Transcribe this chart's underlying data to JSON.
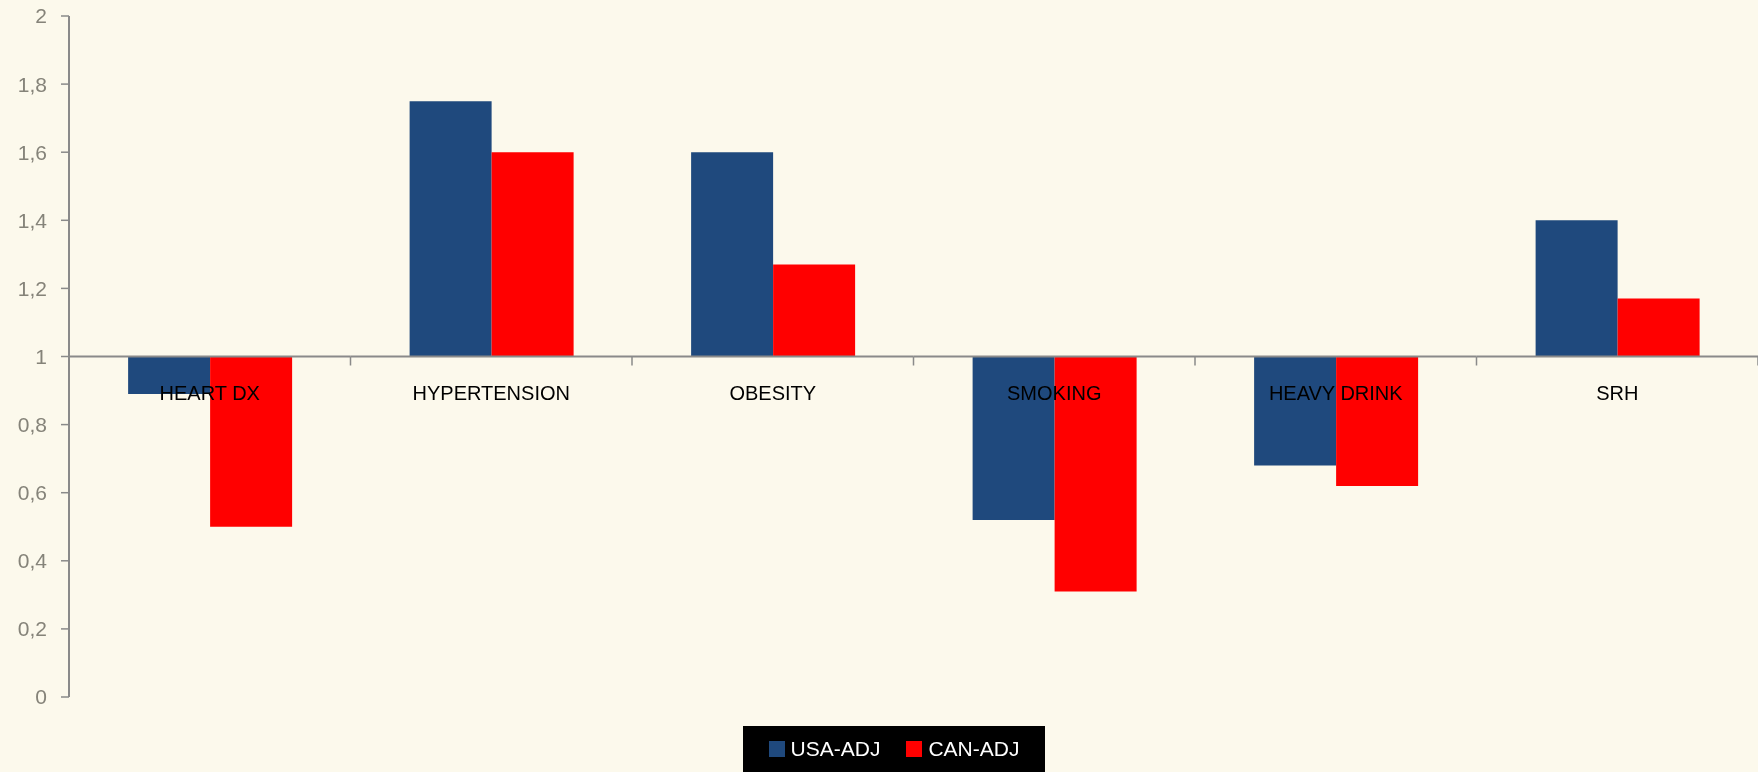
{
  "chart_data": {
    "type": "bar",
    "categories": [
      "HEART DX",
      "HYPERTENSION",
      "OBESITY",
      "SMOKING",
      "HEAVY DRINK",
      "SRH"
    ],
    "series": [
      {
        "name": "USA-ADJ",
        "color": "#1f497d",
        "base": [
          1,
          1,
          1,
          1,
          1,
          1
        ],
        "values": [
          -0.11,
          0.75,
          0.6,
          -0.48,
          -0.32,
          0.4
        ]
      },
      {
        "name": "CAN-ADJ",
        "color": "#ff0000",
        "base": [
          1,
          1,
          1,
          1,
          1,
          1
        ],
        "values": [
          -0.5,
          0.6,
          0.27,
          -0.69,
          -0.38,
          0.17
        ]
      }
    ],
    "ylim": [
      0,
      2
    ],
    "yticks": [
      0,
      {
        "value": 0.2,
        "label": "0,2"
      },
      {
        "value": 0.4,
        "label": "0,4"
      },
      {
        "value": 0.6,
        "label": "0,6"
      },
      {
        "value": 0.8,
        "label": "0,8"
      },
      1,
      {
        "value": 1.2,
        "label": "1,2"
      },
      {
        "value": 1.4,
        "label": "1,4"
      },
      {
        "value": 1.6,
        "label": "1,6"
      },
      {
        "value": 1.8,
        "label": "1,8"
      },
      2
    ],
    "legend": "bottom"
  }
}
